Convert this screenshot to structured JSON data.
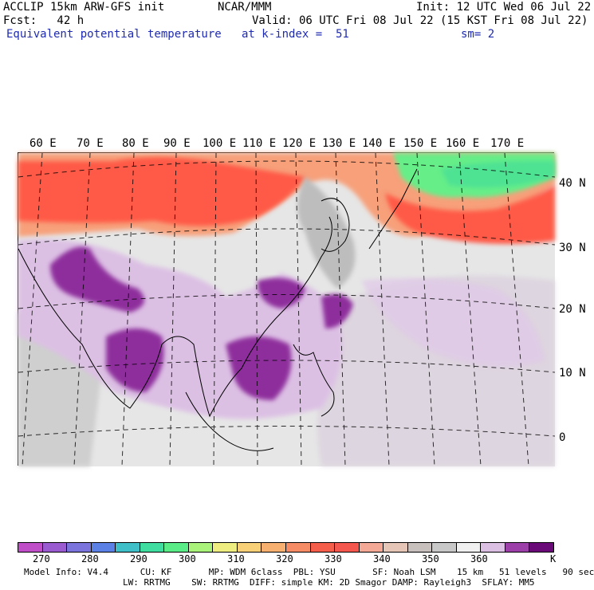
{
  "header": {
    "line1_left": "ACCLIP 15km ARW-GFS init",
    "line1_center": "NCAR/MMM",
    "line1_right": "Init: 12 UTC Wed 06 Jul 22",
    "line2_left": "Fcst:   42 h",
    "line2_right": "Valid: 06 UTC Fri 08 Jul 22 (15 KST Fri 08 Jul 22)",
    "line3_left": "Equivalent potential temperature",
    "line3_center": "at k-index =  51",
    "line3_right": "sm= 2"
  },
  "map": {
    "lon_labels": [
      "60 E",
      "70 E",
      "80 E",
      "90 E",
      "100 E",
      "110 E",
      "120 E",
      "130 E",
      "140 E",
      "150 E",
      "160 E",
      "170 E"
    ],
    "lat_labels": [
      "40 N",
      "30 N",
      "20 N",
      "10 N",
      "0"
    ],
    "colors": {
      "background": "#e6e6e6",
      "cold_green": "#66ee88",
      "warm_red": "#ff5a47",
      "orange": "#ff9966",
      "light_purple": "#d9bde4",
      "dark_purple": "#8e2f9c",
      "gray": "#b8b8b8",
      "white": "#f4f4f4"
    }
  },
  "colorbar": {
    "colors": [
      "#c04ec8",
      "#9b5bd0",
      "#7a74dc",
      "#5b80e6",
      "#3fc0c8",
      "#3fdea0",
      "#5aec86",
      "#aaf37a",
      "#eeee80",
      "#f8d078",
      "#f8b070",
      "#f68c66",
      "#f65e4c",
      "#f4574d",
      "#f4a896",
      "#e6c6b6",
      "#c8c0bc",
      "#c8c8c8",
      "#f0f0f0",
      "#dcc0e4",
      "#9c3fa8",
      "#6a0a78"
    ],
    "labels": [
      "270",
      "280",
      "290",
      "300",
      "310",
      "320",
      "330",
      "340",
      "350",
      "360"
    ],
    "unit": "K"
  },
  "model_info": {
    "line1": "Model Info: V4.4      CU: KF       MP: WDM 6class  PBL: YSU       SF: Noah LSM    15 km   51 levels   90 sec",
    "line2": "LW: RRTMG    SW: RRTMG  DIFF: simple KM: 2D Smagor DAMP: Rayleigh3  SFLAY: MM5"
  }
}
